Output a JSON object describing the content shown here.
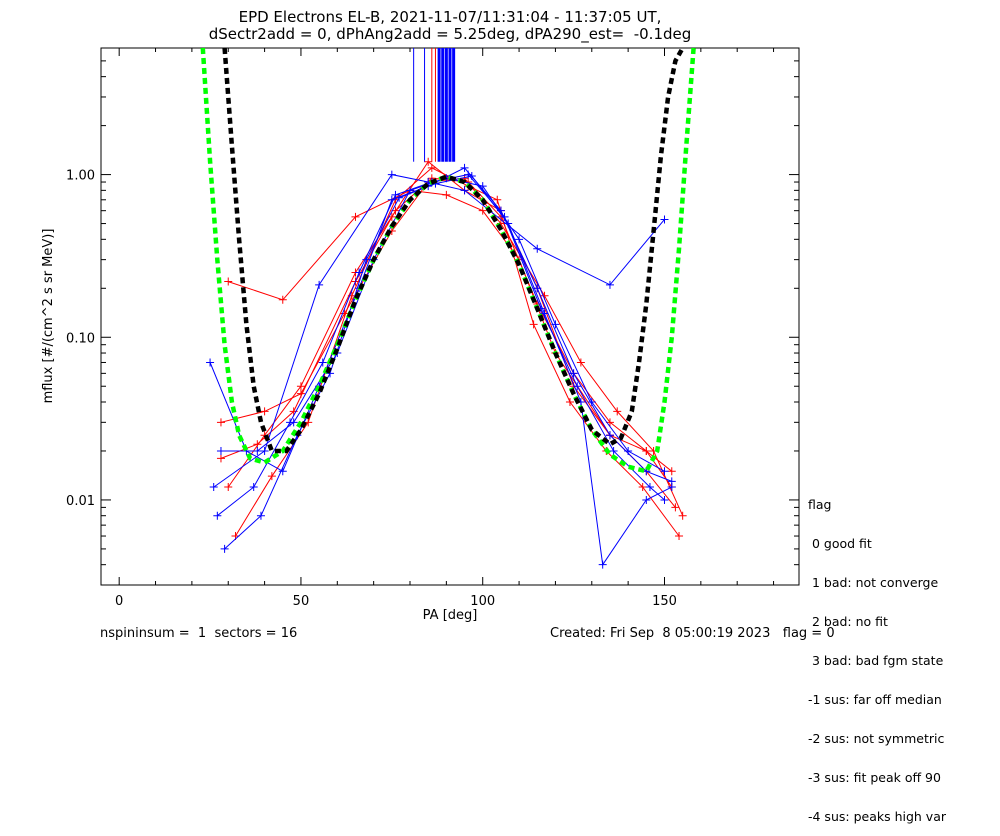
{
  "title_line1": "EPD Electrons EL-B, 2021-11-07/11:31:04 - 11:37:05 UT,",
  "title_line2": "dSectr2add = 0, dPhAng2add = 5.25deg, dPA290_est=  -0.1deg",
  "footer_left": "nspininsum =  1  sectors = 16",
  "footer_right": "Created: Fri Sep  8 05:00:19 2023   flag = 0",
  "legend": {
    "heading": "flag",
    "items": [
      " 0 good fit",
      " 1 bad: not converge",
      " 2 bad: no fit",
      " 3 bad: bad fgm state",
      "-1 sus: far off median",
      "-2 sus: not symmetric",
      "-3 sus: fit peak off 90",
      "-4 sus: peaks high var"
    ]
  },
  "colors": {
    "series_a": "#ff0000",
    "series_b": "#0000ff",
    "fit_green": "#00ff00",
    "fit_black": "#000000"
  },
  "chart_data": {
    "type": "line",
    "xlabel": "PA [deg]",
    "ylabel": "mflux [#/(cm^2 s sr MeV)]",
    "xlim": [
      -5,
      187
    ],
    "ylim": [
      0.003,
      6
    ],
    "yscale": "log",
    "xticks": [
      0,
      50,
      100,
      150
    ],
    "yticks": [
      0.01,
      0.1,
      1.0
    ],
    "ytick_labels": [
      "0.01",
      "0.10",
      "1.00"
    ],
    "series": [
      {
        "color": "red",
        "x": [
          28,
          38,
          48,
          65,
          76,
          86,
          96,
          105,
          115,
          125,
          135,
          145,
          152
        ],
        "y": [
          0.018,
          0.022,
          0.035,
          0.22,
          0.6,
          0.95,
          0.9,
          0.55,
          0.16,
          0.06,
          0.03,
          0.02,
          0.012
        ]
      },
      {
        "color": "red",
        "x": [
          30,
          40,
          50,
          65,
          75,
          85,
          95,
          105,
          115,
          125,
          135,
          145,
          153
        ],
        "y": [
          0.012,
          0.025,
          0.05,
          0.25,
          0.55,
          1.2,
          0.8,
          0.6,
          0.2,
          0.05,
          0.025,
          0.015,
          0.009
        ]
      },
      {
        "color": "red",
        "x": [
          32,
          42,
          52,
          64,
          76,
          86,
          96,
          104,
          114,
          124,
          134,
          144,
          154
        ],
        "y": [
          0.006,
          0.014,
          0.03,
          0.18,
          0.7,
          1.1,
          0.85,
          0.7,
          0.12,
          0.04,
          0.02,
          0.012,
          0.006
        ]
      },
      {
        "color": "red",
        "x": [
          30,
          45,
          65,
          80,
          90,
          100,
          110,
          120,
          135,
          145,
          152
        ],
        "y": [
          0.22,
          0.17,
          0.55,
          0.8,
          0.75,
          0.6,
          0.3,
          0.08,
          0.025,
          0.02,
          0.015
        ]
      },
      {
        "color": "red",
        "x": [
          28,
          40,
          50,
          62,
          75,
          85,
          95,
          105,
          117,
          127,
          137,
          147,
          155
        ],
        "y": [
          0.03,
          0.035,
          0.045,
          0.14,
          0.45,
          0.9,
          0.95,
          0.5,
          0.18,
          0.07,
          0.035,
          0.02,
          0.008
        ]
      },
      {
        "color": "blue",
        "x": [
          25,
          35,
          45,
          55,
          66,
          75,
          85,
          95,
          105,
          115,
          125,
          135,
          145,
          152
        ],
        "y": [
          0.07,
          0.02,
          0.015,
          0.05,
          0.2,
          0.7,
          0.85,
          1.1,
          0.6,
          0.2,
          0.06,
          0.025,
          0.015,
          0.013
        ]
      },
      {
        "color": "blue",
        "x": [
          27,
          37,
          47,
          56,
          66,
          76,
          86,
          96,
          106,
          116,
          126,
          136,
          146,
          150
        ],
        "y": [
          0.008,
          0.012,
          0.03,
          0.07,
          0.25,
          0.75,
          0.9,
          1.0,
          0.55,
          0.15,
          0.05,
          0.02,
          0.012,
          0.01
        ]
      },
      {
        "color": "blue",
        "x": [
          26,
          40,
          55,
          75,
          85,
          95,
          115,
          135,
          150
        ],
        "y": [
          0.012,
          0.02,
          0.21,
          1.0,
          0.9,
          0.8,
          0.35,
          0.21,
          0.53
        ]
      },
      {
        "color": "blue",
        "x": [
          29,
          39,
          49,
          58,
          68,
          77,
          87,
          97,
          107,
          117,
          127,
          133,
          145,
          152
        ],
        "y": [
          0.005,
          0.008,
          0.025,
          0.06,
          0.3,
          0.72,
          0.88,
          0.98,
          0.5,
          0.14,
          0.04,
          0.004,
          0.01,
          0.012
        ]
      },
      {
        "color": "blue",
        "x": [
          28,
          38,
          48,
          60,
          70,
          80,
          90,
          100,
          110,
          120,
          130,
          140,
          150
        ],
        "y": [
          0.02,
          0.02,
          0.03,
          0.08,
          0.3,
          0.8,
          0.95,
          0.85,
          0.4,
          0.12,
          0.04,
          0.02,
          0.015
        ]
      }
    ],
    "peak_bars": [
      {
        "color": "blue",
        "x": 81,
        "y_from": 1.2,
        "y_to": 6
      },
      {
        "color": "blue",
        "x": 84,
        "y_from": 1.2,
        "y_to": 6
      },
      {
        "color": "red",
        "x": 86,
        "y_from": 1.2,
        "y_to": 6
      },
      {
        "color": "red",
        "x": 87,
        "y_from": 1.2,
        "y_to": 6
      },
      {
        "color": "blue",
        "x": 88,
        "y_from": 1.2,
        "y_to": 6
      },
      {
        "color": "blue",
        "x": 89,
        "y_from": 1.2,
        "y_to": 6
      },
      {
        "color": "blue",
        "x": 90,
        "y_from": 1.2,
        "y_to": 6
      },
      {
        "color": "blue",
        "x": 91,
        "y_from": 1.2,
        "y_to": 6
      },
      {
        "color": "blue",
        "x": 92,
        "y_from": 1.2,
        "y_to": 6
      }
    ],
    "fit_green": {
      "color": "green",
      "x": [
        23,
        25,
        27,
        29,
        31,
        33,
        36,
        40,
        45,
        50,
        55,
        60,
        65,
        70,
        75,
        80,
        85,
        90,
        95,
        100,
        105,
        110,
        115,
        120,
        125,
        130,
        135,
        140,
        145,
        148,
        150,
        152,
        154,
        156,
        158
      ],
      "y": [
        6,
        1.2,
        0.3,
        0.09,
        0.04,
        0.025,
        0.018,
        0.017,
        0.02,
        0.03,
        0.05,
        0.09,
        0.17,
        0.3,
        0.48,
        0.7,
        0.88,
        0.97,
        0.9,
        0.7,
        0.46,
        0.28,
        0.15,
        0.08,
        0.045,
        0.027,
        0.019,
        0.016,
        0.015,
        0.02,
        0.04,
        0.1,
        0.35,
        1.5,
        6
      ]
    },
    "fit_black": {
      "color": "black",
      "x": [
        29,
        31,
        33,
        35,
        37,
        39,
        42,
        46,
        50,
        55,
        60,
        65,
        70,
        75,
        80,
        85,
        90,
        95,
        100,
        105,
        110,
        115,
        120,
        125,
        130,
        135,
        138,
        141,
        143,
        145,
        147,
        149,
        151,
        153,
        155
      ],
      "y": [
        6,
        1.5,
        0.4,
        0.12,
        0.05,
        0.03,
        0.02,
        0.02,
        0.027,
        0.045,
        0.085,
        0.17,
        0.3,
        0.48,
        0.7,
        0.88,
        0.97,
        0.9,
        0.7,
        0.46,
        0.28,
        0.15,
        0.08,
        0.045,
        0.027,
        0.022,
        0.024,
        0.035,
        0.07,
        0.16,
        0.45,
        1.3,
        3.0,
        5.0,
        6
      ]
    }
  }
}
